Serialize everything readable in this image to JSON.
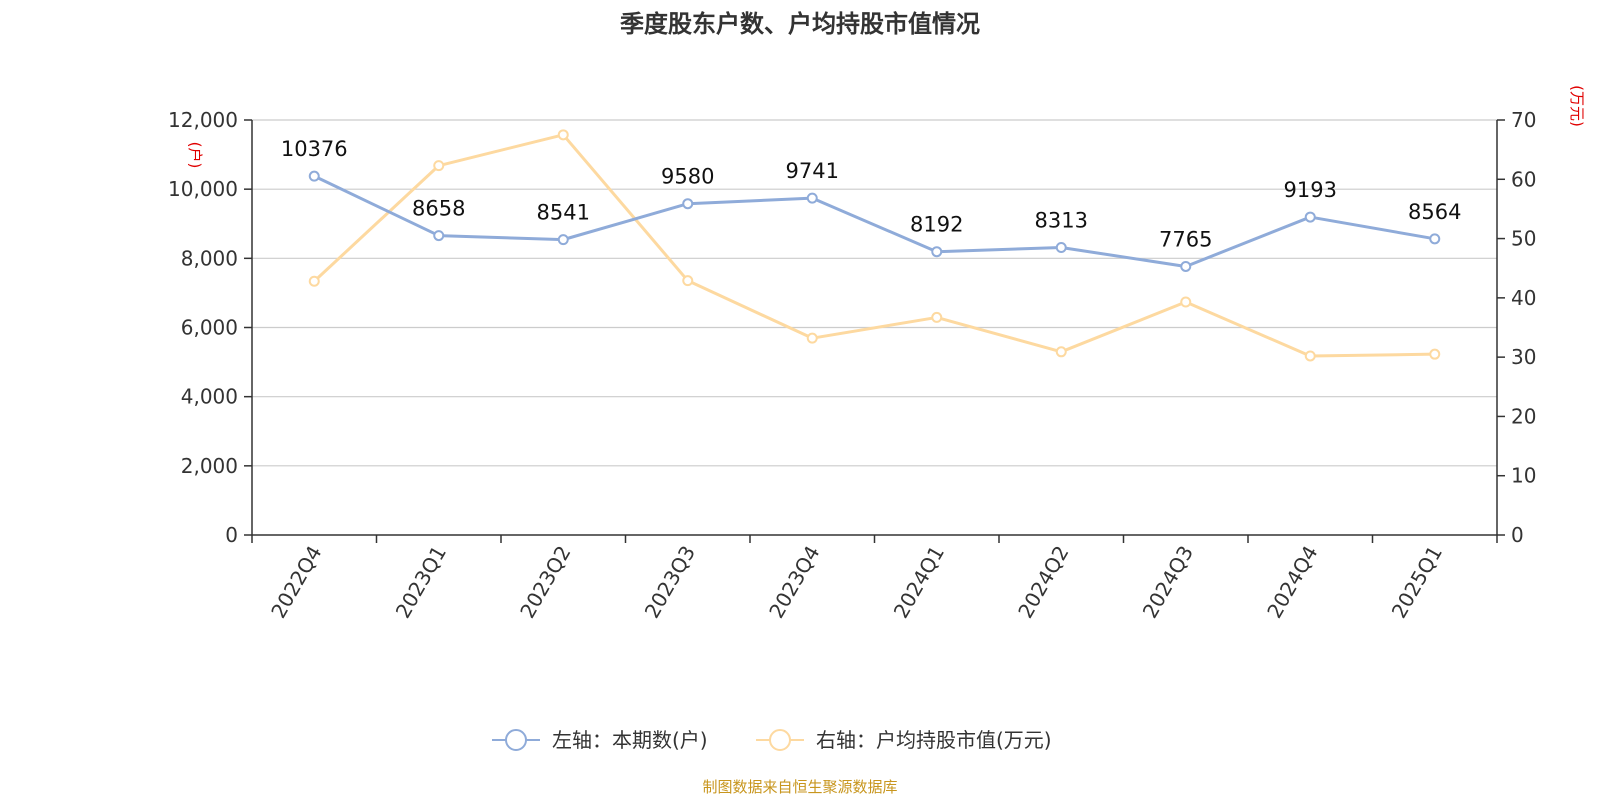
{
  "title": "季度股东户数、户均持股市值情况",
  "source": "制图数据来自恒生聚源数据库",
  "colors": {
    "left_series": "#8fabd9",
    "right_series": "#fdd9a0",
    "grid": "#cccccc",
    "axis": "#333333",
    "unit": "#e00000",
    "source": "#c8961e"
  },
  "chart_data": {
    "type": "line",
    "title": "季度股东户数、户均持股市值情况",
    "categories": [
      "2022Q4",
      "2023Q1",
      "2023Q2",
      "2023Q3",
      "2023Q4",
      "2024Q1",
      "2024Q2",
      "2024Q3",
      "2024Q4",
      "2025Q1"
    ],
    "left_axis": {
      "unit": "(户)",
      "ylim": [
        0,
        12000
      ],
      "ticks": [
        0,
        2000,
        4000,
        6000,
        8000,
        10000,
        12000
      ],
      "tick_labels": [
        "0",
        "2,000",
        "4,000",
        "6,000",
        "8,000",
        "10,000",
        "12,000"
      ]
    },
    "right_axis": {
      "unit": "(万元)",
      "ylim": [
        0,
        70
      ],
      "ticks": [
        0,
        10,
        20,
        30,
        40,
        50,
        60,
        70
      ],
      "tick_labels": [
        "0",
        "10",
        "20",
        "30",
        "40",
        "50",
        "60",
        "70"
      ]
    },
    "grid": true,
    "legend_position": "bottom-center",
    "series": [
      {
        "name": "左轴：本期数(户)",
        "axis": "left",
        "values": [
          10376,
          8658,
          8541,
          9580,
          9741,
          8192,
          8313,
          7765,
          9193,
          8564
        ],
        "labels": [
          "10376",
          "8658",
          "8541",
          "9580",
          "9741",
          "8192",
          "8313",
          "7765",
          "9193",
          "8564"
        ],
        "color": "#8fabd9"
      },
      {
        "name": "右轴：户均持股市值(万元)",
        "axis": "right",
        "values": [
          42.8,
          62.3,
          67.5,
          42.9,
          33.2,
          36.7,
          30.9,
          39.3,
          30.2,
          30.5
        ],
        "color": "#fdd9a0"
      }
    ]
  }
}
